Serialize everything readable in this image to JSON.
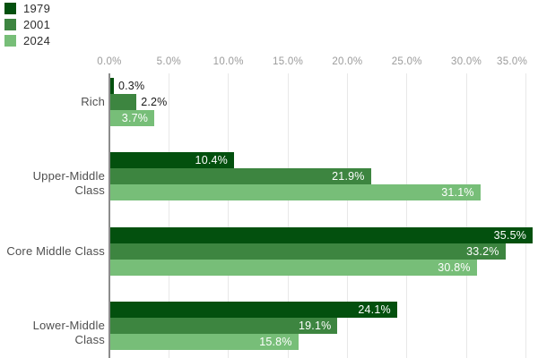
{
  "chart_data": {
    "type": "bar",
    "orientation": "horizontal",
    "title": "",
    "xlabel": "",
    "ylabel": "",
    "categories": [
      "Rich",
      "Upper-Middle Class",
      "Core Middle Class",
      "Lower-Middle Class"
    ],
    "series": [
      {
        "name": "1979",
        "color": "#03500E",
        "values": [
          0.3,
          10.4,
          35.5,
          24.1
        ]
      },
      {
        "name": "2001",
        "color": "#3D8540",
        "values": [
          2.2,
          21.9,
          33.2,
          19.1
        ]
      },
      {
        "name": "2024",
        "color": "#77BE78",
        "values": [
          3.7,
          31.1,
          30.8,
          15.8
        ]
      }
    ],
    "value_labels_shown": true,
    "value_label_suffix": "%",
    "x_ticks": [
      {
        "value": 0,
        "label": "0.0%"
      },
      {
        "value": 5,
        "label": "5.0%"
      },
      {
        "value": 10,
        "label": "10.0%"
      },
      {
        "value": 15,
        "label": "15.0%"
      },
      {
        "value": 20,
        "label": "20.0%"
      },
      {
        "value": 25,
        "label": "25.0%"
      },
      {
        "value": 30,
        "label": "30.0%"
      },
      {
        "value": 35,
        "label": "35.0%"
      }
    ],
    "xlim": [
      0,
      36
    ],
    "grid": "vertical",
    "legend_position": "top-left"
  },
  "style": {
    "background": "#ffffff",
    "axis_line_color": "#8c8c8c",
    "gridline_color": "#e8e8e8",
    "tick_label_color": "#9b9b9b",
    "category_label_color": "#4f4f4f",
    "legend_label_color": "#2d2d2d",
    "value_label_inside_color": "#ffffff",
    "value_label_outside_color": "#1a1a1a"
  }
}
